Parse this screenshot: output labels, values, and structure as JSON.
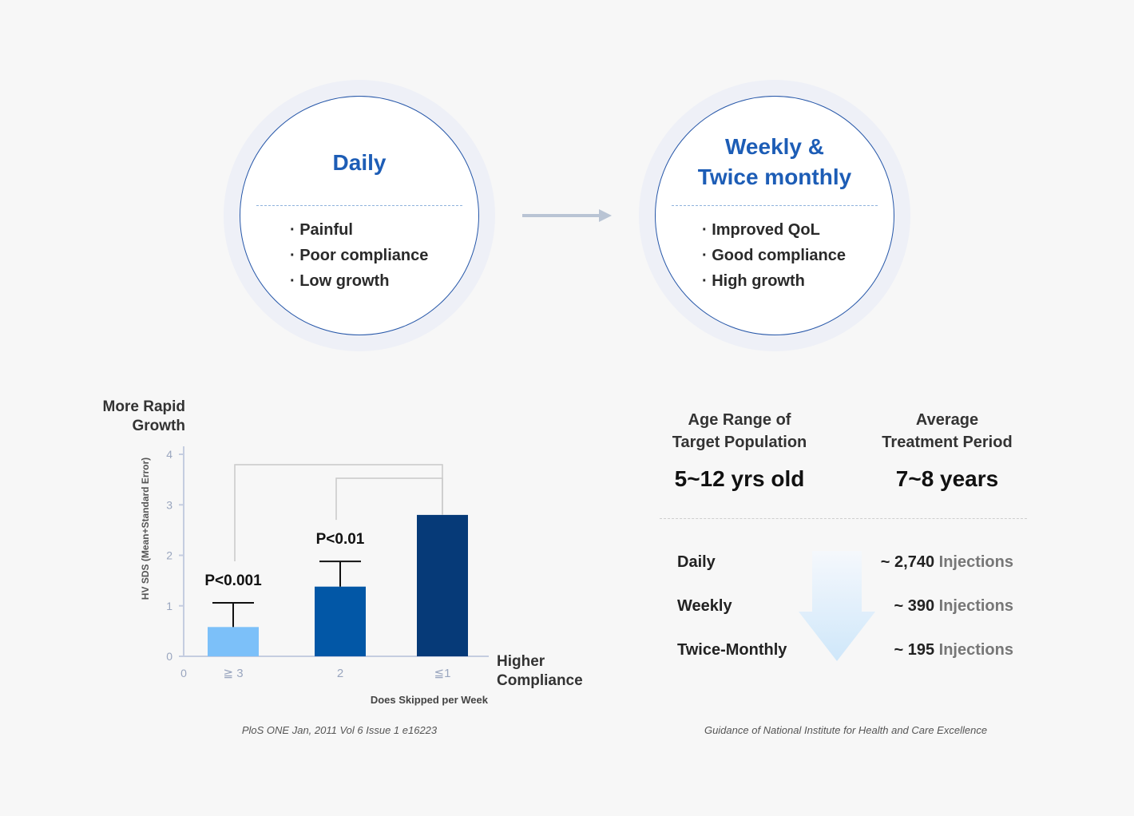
{
  "left_circle": {
    "title": "Daily",
    "items": [
      "Painful",
      "Poor compliance",
      "Low growth"
    ]
  },
  "right_circle": {
    "title_line1": "Weekly &",
    "title_line2": "Twice monthly",
    "items": [
      "Improved QoL",
      "Good compliance",
      "High growth"
    ]
  },
  "chart_data": {
    "type": "bar",
    "title": "",
    "y_title_top": [
      "More Rapid",
      "Growth"
    ],
    "ylabel": "HV SDS (Mean+Standard Error)",
    "xlabel": "Does Skipped per Week",
    "x_right_label": [
      "Higher",
      "Compliance"
    ],
    "ylim": [
      0,
      4
    ],
    "yticks": [
      0,
      1,
      2,
      3,
      4
    ],
    "x_origin_label": "0",
    "categories": [
      "≧ 3",
      "2",
      "≦1"
    ],
    "values": [
      0.58,
      1.38,
      2.8
    ],
    "errors": [
      0.48,
      0.5,
      0
    ],
    "colors": [
      "#7cc0f9",
      "#0257a6",
      "#063a78"
    ],
    "significance": [
      {
        "from": 0,
        "to": 2,
        "label": "P<0.001"
      },
      {
        "from": 1,
        "to": 2,
        "label": "P<0.01"
      }
    ]
  },
  "chart_source": "PloS ONE Jan, 2011 Vol 6 Issue 1 e16223",
  "stats": {
    "age_label": [
      "Age Range of",
      "Target Population"
    ],
    "age_value": "5~12 yrs old",
    "period_label": [
      "Average",
      "Treatment Period"
    ],
    "period_value": "7~8 years"
  },
  "injections": [
    {
      "freq": "Daily",
      "count": "~ 2,740",
      "unit": "Injections"
    },
    {
      "freq": "Weekly",
      "count": "~ 390",
      "unit": "Injections"
    },
    {
      "freq": "Twice-Monthly",
      "count": "~ 195",
      "unit": "Injections"
    }
  ],
  "stats_source": "Guidance of National Institute for Health and Care Excellence",
  "colors": {
    "accent": "#1d5db6",
    "circle_border": "#2556a8",
    "arrow": "#b9c4d4"
  }
}
